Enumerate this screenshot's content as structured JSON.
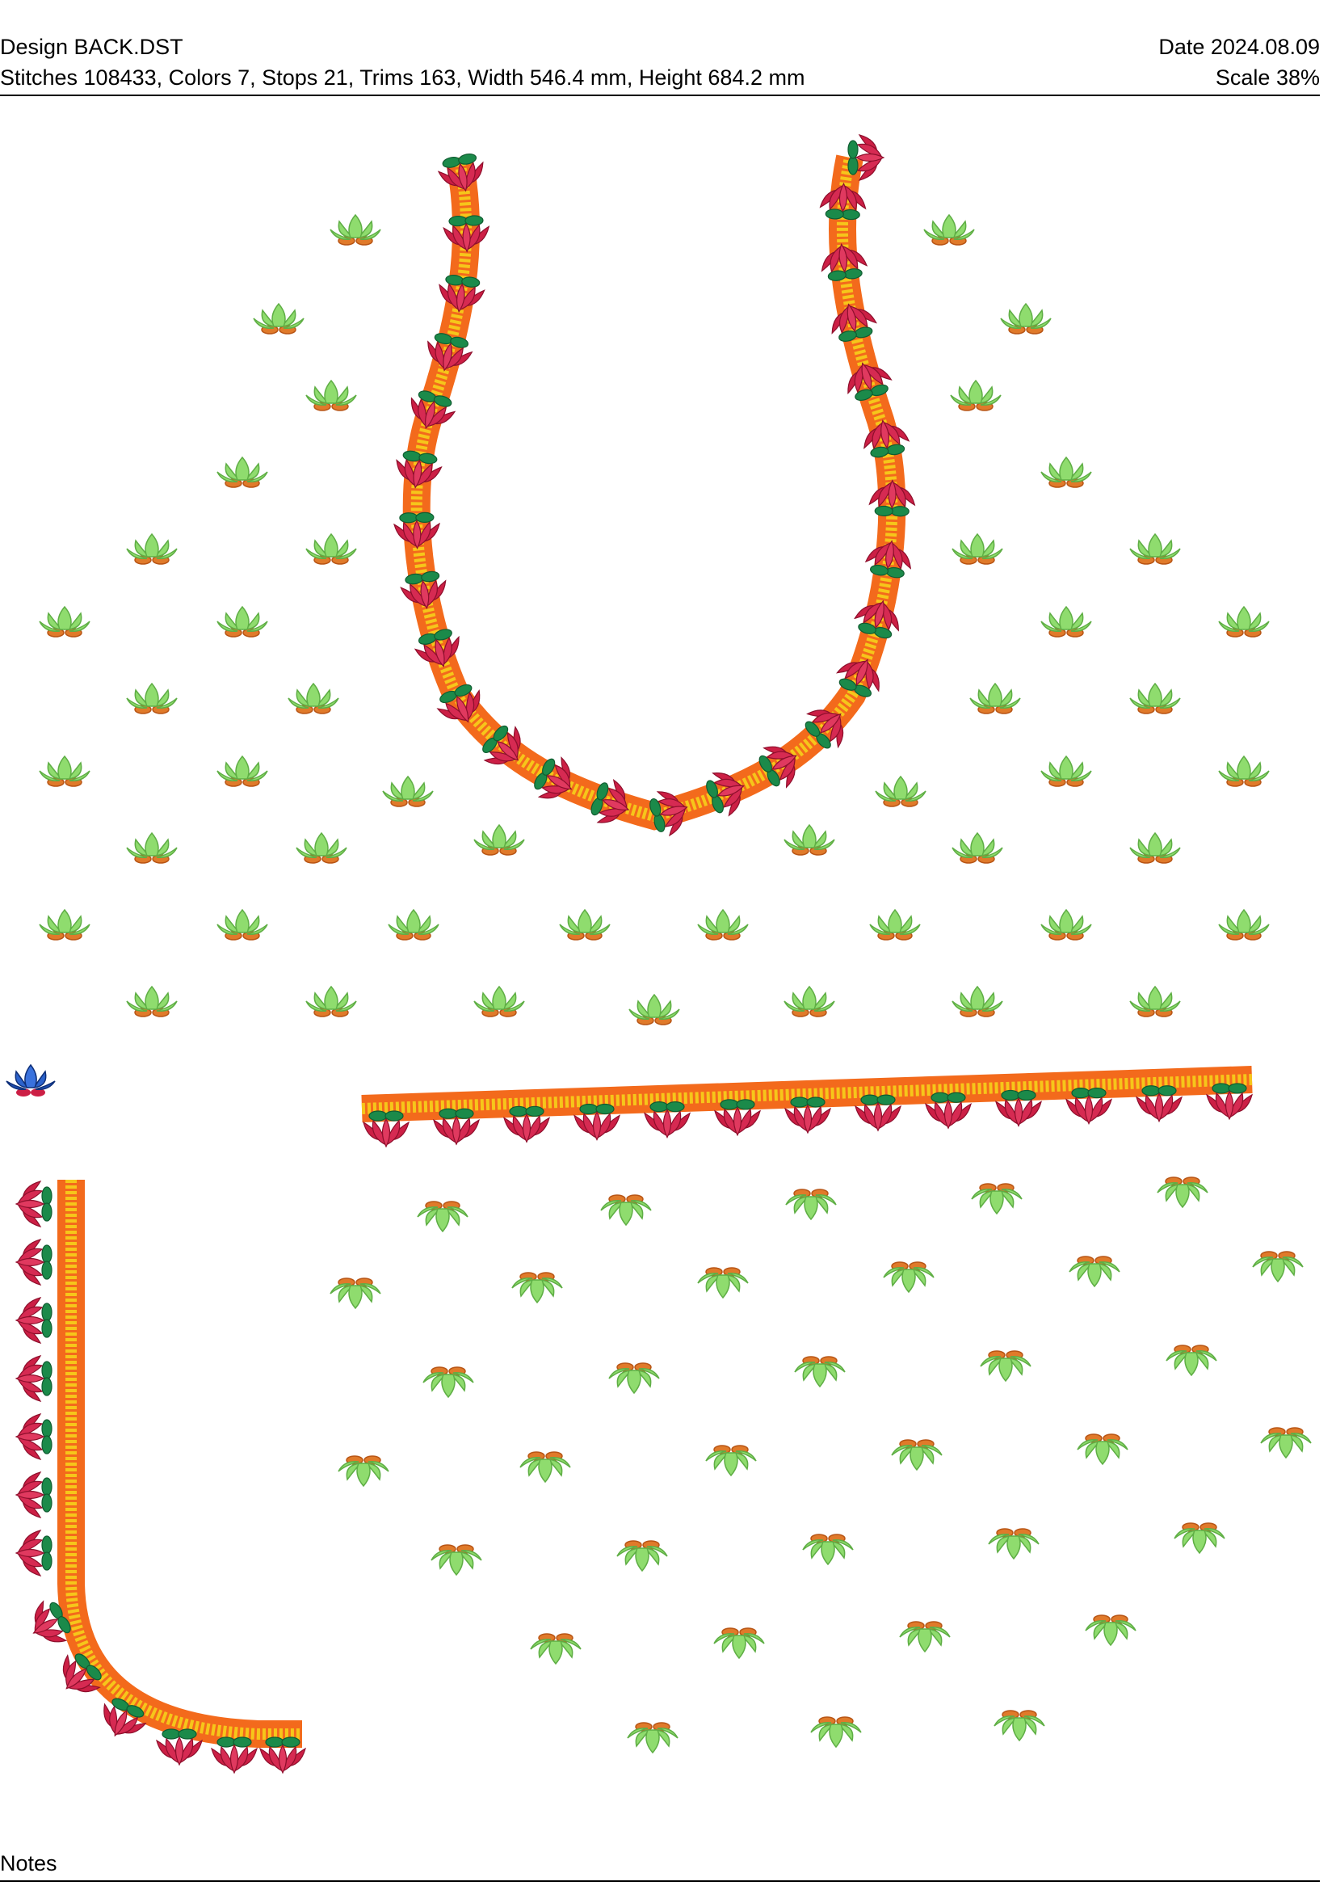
{
  "header": {
    "design_label": "Design BACK.DST",
    "date_label": "Date 2024.08.09",
    "stats_label": "Stitches 108433, Colors 7, Stops 21, Trims 163, Width 546.4 mm, Height 684.2 mm",
    "scale_label": "Scale 38%"
  },
  "footer": {
    "notes_label": "Notes"
  },
  "colors": {
    "orange_border": "#f36a1c",
    "yellow_border": "#f6c61a",
    "red_petal": "#cc1f45",
    "dark_green_leaf": "#1b8a4a",
    "light_green_motif": "#8fdc6e",
    "orange_motif_base": "#e07a2a",
    "blue_motif": "#1f4fb0"
  },
  "motifs": {
    "upright": "lotus-upright-icon",
    "inverted": "lotus-inverted-icon",
    "border_flower": "border-flower-icon",
    "thread_color_swatch": "blue-lotus-icon"
  }
}
